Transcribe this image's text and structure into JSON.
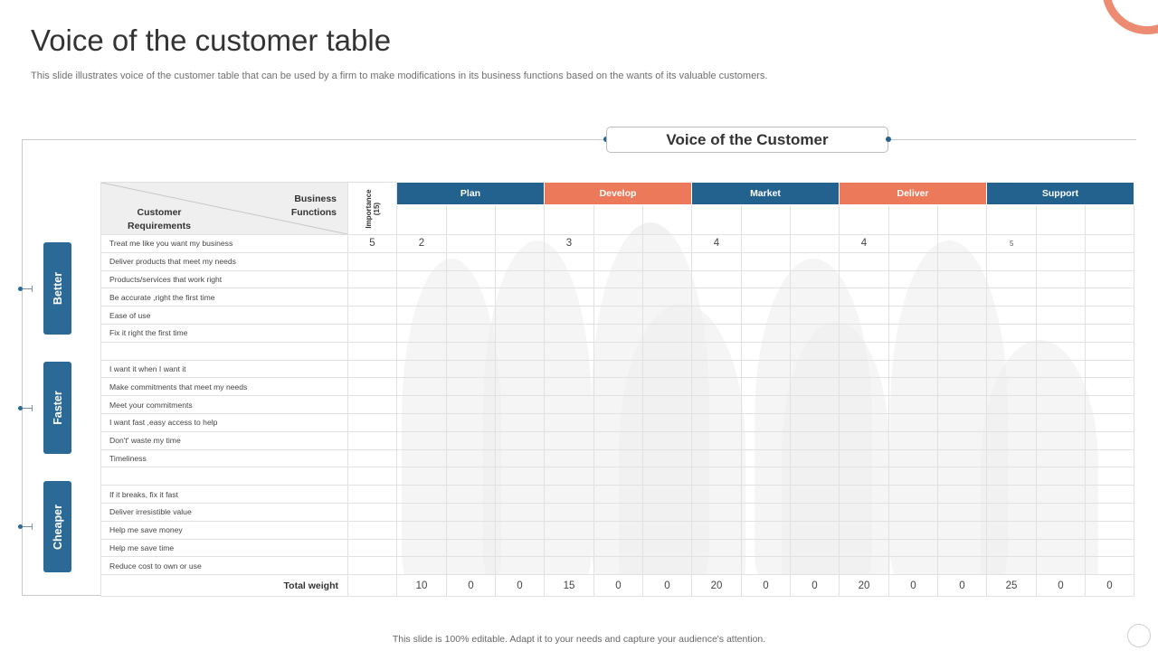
{
  "title": "Voice of the customer table",
  "subtitle": "This slide illustrates voice of the customer table that can be used by a firm to make modifications in its business functions based on the wants of its valuable customers.",
  "voc_label": "Voice of the Customer",
  "corner": {
    "business_functions": "Business Functions",
    "customer_requirements": "Customer Requirements"
  },
  "importance_label": "Importance (15)",
  "functions": [
    {
      "label": "Plan",
      "color": "#23618f"
    },
    {
      "label": "Develop",
      "color": "#ec7a5a"
    },
    {
      "label": "Market",
      "color": "#23618f"
    },
    {
      "label": "Deliver",
      "color": "#ec7a5a"
    },
    {
      "label": "Support",
      "color": "#23618f"
    }
  ],
  "groups": [
    {
      "label": "Better"
    },
    {
      "label": "Faster"
    },
    {
      "label": "Cheaper"
    }
  ],
  "rows": [
    {
      "req": "Treat me like you want my business",
      "imp": "5",
      "vals": [
        "2",
        "",
        "",
        "3",
        "",
        "",
        "4",
        "",
        "",
        "4",
        "",
        "",
        "5",
        "",
        ""
      ]
    },
    {
      "req": "Deliver products that meet my needs",
      "imp": "",
      "vals": [
        "",
        "",
        "",
        "",
        "",
        "",
        "",
        "",
        "",
        "",
        "",
        "",
        "",
        "",
        ""
      ]
    },
    {
      "req": "Products/services that work right",
      "imp": "",
      "vals": [
        "",
        "",
        "",
        "",
        "",
        "",
        "",
        "",
        "",
        "",
        "",
        "",
        "",
        "",
        ""
      ]
    },
    {
      "req": "Be accurate ,right the first time",
      "imp": "",
      "vals": [
        "",
        "",
        "",
        "",
        "",
        "",
        "",
        "",
        "",
        "",
        "",
        "",
        "",
        "",
        ""
      ]
    },
    {
      "req": "Ease of use",
      "imp": "",
      "vals": [
        "",
        "",
        "",
        "",
        "",
        "",
        "",
        "",
        "",
        "",
        "",
        "",
        "",
        "",
        ""
      ]
    },
    {
      "req": "Fix it right the first time",
      "imp": "",
      "vals": [
        "",
        "",
        "",
        "",
        "",
        "",
        "",
        "",
        "",
        "",
        "",
        "",
        "",
        "",
        ""
      ]
    },
    {
      "req": "",
      "imp": "",
      "vals": [
        "",
        "",
        "",
        "",
        "",
        "",
        "",
        "",
        "",
        "",
        "",
        "",
        "",
        "",
        ""
      ]
    },
    {
      "req": "I want it when I want it",
      "imp": "",
      "vals": [
        "",
        "",
        "",
        "",
        "",
        "",
        "",
        "",
        "",
        "",
        "",
        "",
        "",
        "",
        ""
      ]
    },
    {
      "req": "Make commitments that meet my needs",
      "imp": "",
      "vals": [
        "",
        "",
        "",
        "",
        "",
        "",
        "",
        "",
        "",
        "",
        "",
        "",
        "",
        "",
        ""
      ]
    },
    {
      "req": "Meet your commitments",
      "imp": "",
      "vals": [
        "",
        "",
        "",
        "",
        "",
        "",
        "",
        "",
        "",
        "",
        "",
        "",
        "",
        "",
        ""
      ]
    },
    {
      "req": "I want fast ,easy access to help",
      "imp": "",
      "vals": [
        "",
        "",
        "",
        "",
        "",
        "",
        "",
        "",
        "",
        "",
        "",
        "",
        "",
        "",
        ""
      ]
    },
    {
      "req": "Don't' waste my time",
      "imp": "",
      "vals": [
        "",
        "",
        "",
        "",
        "",
        "",
        "",
        "",
        "",
        "",
        "",
        "",
        "",
        "",
        ""
      ]
    },
    {
      "req": "Timeliness",
      "imp": "",
      "vals": [
        "",
        "",
        "",
        "",
        "",
        "",
        "",
        "",
        "",
        "",
        "",
        "",
        "",
        "",
        ""
      ]
    },
    {
      "req": "",
      "imp": "",
      "vals": [
        "",
        "",
        "",
        "",
        "",
        "",
        "",
        "",
        "",
        "",
        "",
        "",
        "",
        "",
        ""
      ]
    },
    {
      "req": "If it breaks, fix it fast",
      "imp": "",
      "vals": [
        "",
        "",
        "",
        "",
        "",
        "",
        "",
        "",
        "",
        "",
        "",
        "",
        "",
        "",
        ""
      ]
    },
    {
      "req": "Deliver irresistible value",
      "imp": "",
      "vals": [
        "",
        "",
        "",
        "",
        "",
        "",
        "",
        "",
        "",
        "",
        "",
        "",
        "",
        "",
        ""
      ]
    },
    {
      "req": "Help me save money",
      "imp": "",
      "vals": [
        "",
        "",
        "",
        "",
        "",
        "",
        "",
        "",
        "",
        "",
        "",
        "",
        "",
        "",
        ""
      ]
    },
    {
      "req": "Help me save time",
      "imp": "",
      "vals": [
        "",
        "",
        "",
        "",
        "",
        "",
        "",
        "",
        "",
        "",
        "",
        "",
        "",
        "",
        ""
      ]
    },
    {
      "req": "Reduce cost to own or use",
      "imp": "",
      "vals": [
        "",
        "",
        "",
        "",
        "",
        "",
        "",
        "",
        "",
        "",
        "",
        "",
        "",
        "",
        ""
      ]
    }
  ],
  "total": {
    "label": "Total weight",
    "vals": [
      "10",
      "0",
      "0",
      "15",
      "0",
      "0",
      "20",
      "0",
      "0",
      "20",
      "0",
      "0",
      "25",
      "0",
      "0"
    ]
  },
  "footer": "This slide is 100% editable. Adapt it to your needs and capture your audience's attention."
}
